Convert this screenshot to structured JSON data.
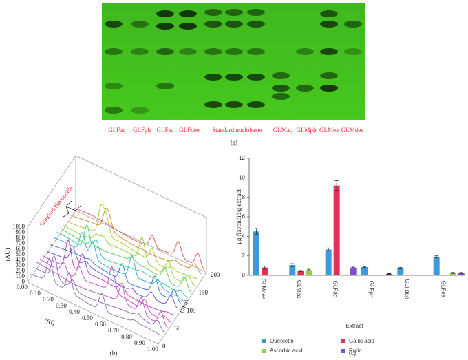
{
  "panel_a": {
    "lane_labels": [
      "GLFaq",
      "GLFph",
      "GLFea",
      "GLFdee",
      "Standard nuclobases",
      "GLMaq",
      "GLMph",
      "GLMea",
      "GLMdee"
    ],
    "caption": "(a)"
  },
  "panel_b": {
    "y_label": "(AU)",
    "y_ticks": [
      "0",
      "100",
      "200",
      "300",
      "400",
      "500",
      "600",
      "700",
      "800",
      "900",
      "1000"
    ],
    "x_label": "(Rf)",
    "x_ticks": [
      "0.00",
      "0.10",
      "0.20",
      "0.30",
      "0.40",
      "0.50",
      "0.60",
      "0.70",
      "0.80",
      "0.90",
      "1.00"
    ],
    "z_label": "(mm)",
    "z_ticks": [
      "0",
      "50",
      "100",
      "150",
      "200"
    ],
    "annotation": "Standard flavonoids",
    "caption": "(b)"
  },
  "chart_data": {
    "type": "bar",
    "caption": "(c)",
    "x_label": "Extract",
    "y_label": "μg flavonoid/g extract",
    "categories": [
      "GLMdee",
      "GLMea",
      "GLFaq",
      "GLFph",
      "GLFdee",
      "GLFea"
    ],
    "series": [
      {
        "name": "Quercetin",
        "color": "#3b9bdc",
        "values": [
          4.5,
          1.05,
          2.65,
          0.85,
          0.75,
          1.9
        ],
        "errors": [
          0.3,
          0.15,
          0.15,
          0.05,
          0.08,
          0.1
        ]
      },
      {
        "name": "Gallic acid",
        "color": "#e0325a",
        "values": [
          0.8,
          0.45,
          9.2,
          null,
          null,
          null
        ],
        "errors": [
          0.15,
          0.05,
          0.5,
          null,
          null,
          null
        ]
      },
      {
        "name": "Ascorbic acid",
        "color": "#8ed24c",
        "values": [
          null,
          0.55,
          null,
          null,
          null,
          0.25
        ],
        "errors": [
          null,
          0.08,
          null,
          null,
          null,
          0.05
        ]
      },
      {
        "name": "Rutin",
        "color": "#7b4fd6",
        "values": [
          null,
          null,
          0.8,
          0.15,
          null,
          0.25
        ],
        "errors": [
          null,
          null,
          0.05,
          0.03,
          null,
          0.05
        ]
      }
    ],
    "ylim": [
      0,
      12
    ],
    "yticks": [
      0,
      2,
      4,
      6,
      8,
      10,
      12
    ],
    "legend": "bottom"
  }
}
